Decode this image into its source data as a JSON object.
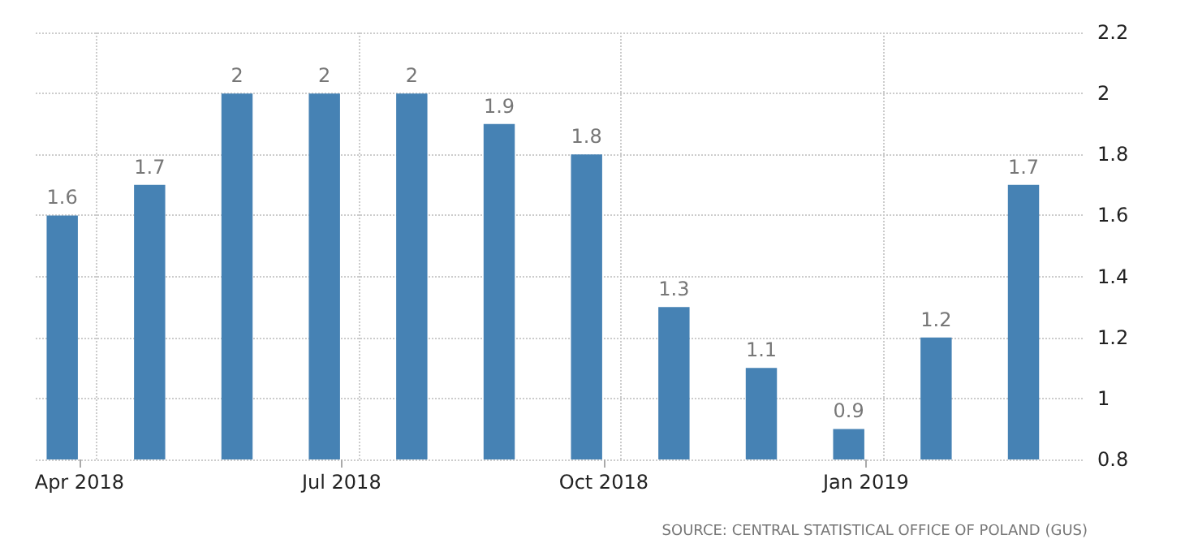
{
  "chart_data": {
    "type": "bar",
    "categories": [
      "Apr 2018",
      null,
      null,
      "Jul 2018",
      null,
      null,
      "Oct 2018",
      null,
      null,
      "Jan 2019",
      null,
      null
    ],
    "values": [
      1.6,
      1.7,
      2,
      2,
      2,
      1.9,
      1.8,
      1.3,
      1.1,
      0.9,
      1.2,
      1.7
    ],
    "color": "#4682b4",
    "ylim": [
      0.8,
      2.2
    ],
    "yticks": [
      0.8,
      1,
      1.2,
      1.4,
      1.6,
      1.8,
      2,
      2.2
    ],
    "grid": true,
    "data_labels": true,
    "annotations": [
      "SOURCE: CENTRAL STATISTICAL OFFICE OF POLAND (GUS)"
    ]
  }
}
